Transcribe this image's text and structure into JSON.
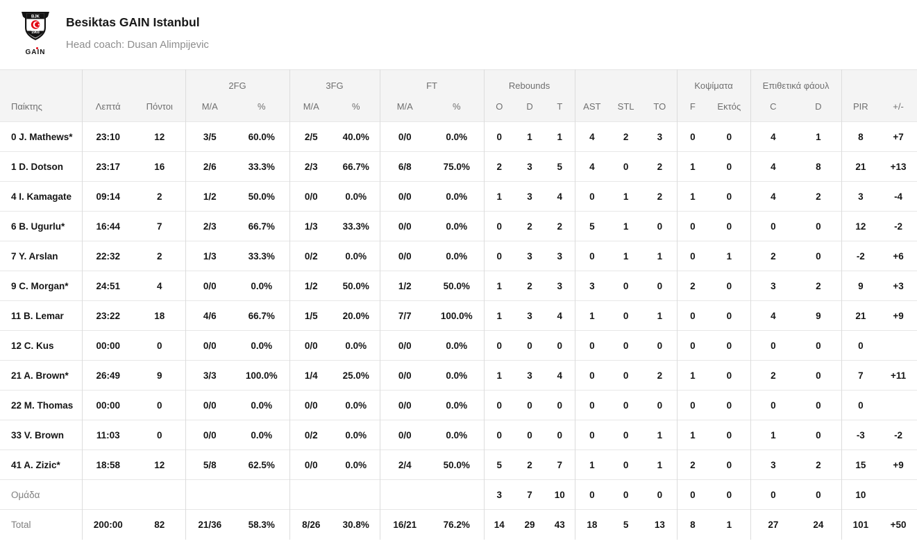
{
  "header": {
    "team_name": "Besiktas GAIN Istanbul",
    "coach": "Head coach: Dusan Alimpijevic",
    "logo": {
      "top_text": "BJK",
      "year": "1903",
      "brand": "GAIN"
    }
  },
  "table": {
    "group_headers": [
      {
        "label": "",
        "span": 1
      },
      {
        "label": "",
        "span": 2
      },
      {
        "label": "2FG",
        "span": 2
      },
      {
        "label": "3FG",
        "span": 2
      },
      {
        "label": "FT",
        "span": 2
      },
      {
        "label": "Rebounds",
        "span": 3
      },
      {
        "label": "",
        "span": 3
      },
      {
        "label": "Κοψίματα",
        "span": 2
      },
      {
        "label": "Επιθετικά φάουλ",
        "span": 2
      },
      {
        "label": "",
        "span": 2
      }
    ],
    "columns": [
      "Παίκτης",
      "Λεπτά",
      "Πόντοι",
      "M/A",
      "%",
      "M/A",
      "%",
      "M/A",
      "%",
      "O",
      "D",
      "T",
      "AST",
      "STL",
      "TO",
      "F",
      "Εκτός",
      "C",
      "D",
      "PIR",
      "+/-"
    ],
    "rows": [
      [
        "0 J. Mathews*",
        "23:10",
        "12",
        "3/5",
        "60.0%",
        "2/5",
        "40.0%",
        "0/0",
        "0.0%",
        "0",
        "1",
        "1",
        "4",
        "2",
        "3",
        "0",
        "0",
        "4",
        "1",
        "8",
        "+7"
      ],
      [
        "1 D. Dotson",
        "23:17",
        "16",
        "2/6",
        "33.3%",
        "2/3",
        "66.7%",
        "6/8",
        "75.0%",
        "2",
        "3",
        "5",
        "4",
        "0",
        "2",
        "1",
        "0",
        "4",
        "8",
        "21",
        "+13"
      ],
      [
        "4 I. Kamagate",
        "09:14",
        "2",
        "1/2",
        "50.0%",
        "0/0",
        "0.0%",
        "0/0",
        "0.0%",
        "1",
        "3",
        "4",
        "0",
        "1",
        "2",
        "1",
        "0",
        "4",
        "2",
        "3",
        "-4"
      ],
      [
        "6 B. Ugurlu*",
        "16:44",
        "7",
        "2/3",
        "66.7%",
        "1/3",
        "33.3%",
        "0/0",
        "0.0%",
        "0",
        "2",
        "2",
        "5",
        "1",
        "0",
        "0",
        "0",
        "0",
        "0",
        "12",
        "-2"
      ],
      [
        "7 Y. Arslan",
        "22:32",
        "2",
        "1/3",
        "33.3%",
        "0/2",
        "0.0%",
        "0/0",
        "0.0%",
        "0",
        "3",
        "3",
        "0",
        "1",
        "1",
        "0",
        "1",
        "2",
        "0",
        "-2",
        "+6"
      ],
      [
        "9 C. Morgan*",
        "24:51",
        "4",
        "0/0",
        "0.0%",
        "1/2",
        "50.0%",
        "1/2",
        "50.0%",
        "1",
        "2",
        "3",
        "3",
        "0",
        "0",
        "2",
        "0",
        "3",
        "2",
        "9",
        "+3"
      ],
      [
        "11 B. Lemar",
        "23:22",
        "18",
        "4/6",
        "66.7%",
        "1/5",
        "20.0%",
        "7/7",
        "100.0%",
        "1",
        "3",
        "4",
        "1",
        "0",
        "1",
        "0",
        "0",
        "4",
        "9",
        "21",
        "+9"
      ],
      [
        "12 C. Kus",
        "00:00",
        "0",
        "0/0",
        "0.0%",
        "0/0",
        "0.0%",
        "0/0",
        "0.0%",
        "0",
        "0",
        "0",
        "0",
        "0",
        "0",
        "0",
        "0",
        "0",
        "0",
        "0",
        ""
      ],
      [
        "21 A. Brown*",
        "26:49",
        "9",
        "3/3",
        "100.0%",
        "1/4",
        "25.0%",
        "0/0",
        "0.0%",
        "1",
        "3",
        "4",
        "0",
        "0",
        "2",
        "1",
        "0",
        "2",
        "0",
        "7",
        "+11"
      ],
      [
        "22 M. Thomas",
        "00:00",
        "0",
        "0/0",
        "0.0%",
        "0/0",
        "0.0%",
        "0/0",
        "0.0%",
        "0",
        "0",
        "0",
        "0",
        "0",
        "0",
        "0",
        "0",
        "0",
        "0",
        "0",
        ""
      ],
      [
        "33 V. Brown",
        "11:03",
        "0",
        "0/0",
        "0.0%",
        "0/2",
        "0.0%",
        "0/0",
        "0.0%",
        "0",
        "0",
        "0",
        "0",
        "0",
        "1",
        "1",
        "0",
        "1",
        "0",
        "-3",
        "-2"
      ],
      [
        "41 A. Zizic*",
        "18:58",
        "12",
        "5/8",
        "62.5%",
        "0/0",
        "0.0%",
        "2/4",
        "50.0%",
        "5",
        "2",
        "7",
        "1",
        "0",
        "1",
        "2",
        "0",
        "3",
        "2",
        "15",
        "+9"
      ]
    ],
    "team_row": [
      "Ομάδα",
      "",
      "",
      "",
      "",
      "",
      "",
      "",
      "",
      "3",
      "7",
      "10",
      "0",
      "0",
      "0",
      "0",
      "0",
      "0",
      "0",
      "10",
      ""
    ],
    "total_row": [
      "Total",
      "200:00",
      "82",
      "21/36",
      "58.3%",
      "8/26",
      "30.8%",
      "16/21",
      "76.2%",
      "14",
      "29",
      "43",
      "18",
      "5",
      "13",
      "8",
      "1",
      "27",
      "24",
      "101",
      "+50"
    ]
  }
}
